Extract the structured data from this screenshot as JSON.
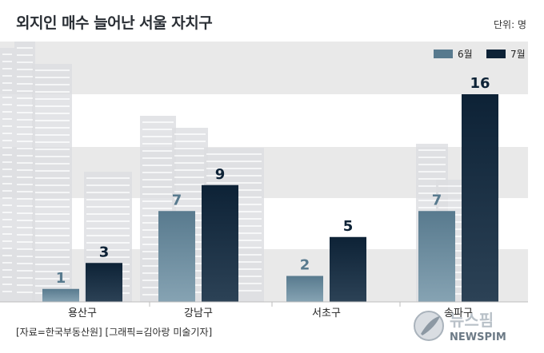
{
  "title": "외지인 매수 늘어난 서울 자치구",
  "unit": "단위: 명",
  "source": "[자료=한국부동산원] [그래픽=김아랑 미술기자]",
  "watermark": {
    "logo_text": "뉴스핌",
    "logo_sub": "NEWSPIM"
  },
  "colors": {
    "series_june": "#587a8e",
    "series_july": "#0d2236",
    "band": "#e9e9e9",
    "axis": "#bdbdbd"
  },
  "chart_data": {
    "type": "bar",
    "title": "외지인 매수 늘어난 서울 자치구",
    "categories": [
      "용산구",
      "강남구",
      "서초구",
      "송파구"
    ],
    "series": [
      {
        "name": "6월",
        "values": [
          1,
          7,
          2,
          7
        ]
      },
      {
        "name": "7월",
        "values": [
          3,
          9,
          5,
          16
        ]
      }
    ],
    "ylim": [
      0,
      16
    ],
    "grid": "alternating bands",
    "legend": "top-right",
    "data_labels": true
  }
}
